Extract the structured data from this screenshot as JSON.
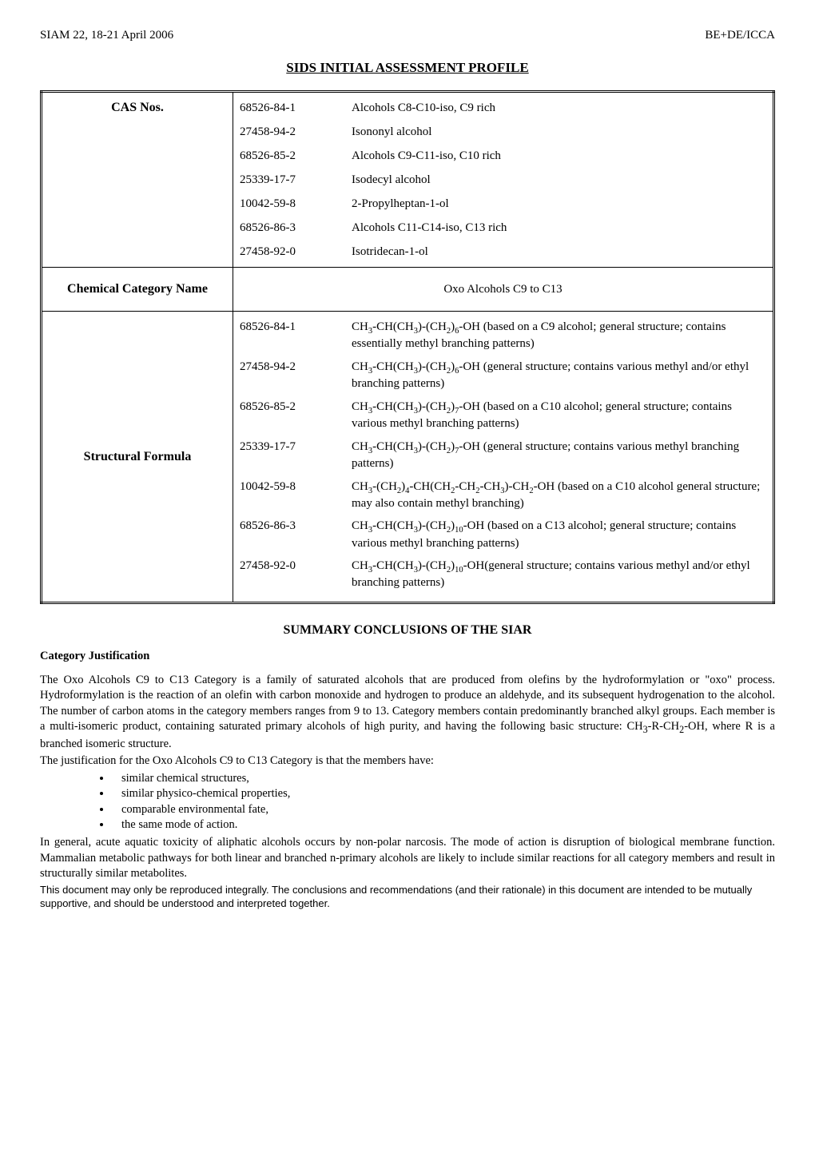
{
  "header": {
    "left": "SIAM 22, 18-21 April 2006",
    "right": "BE+DE/ICCA"
  },
  "title": "SIDS INITIAL ASSESSMENT PROFILE",
  "table": {
    "row1": {
      "label": "CAS Nos.",
      "items": [
        {
          "cas": "68526-84-1",
          "name": "Alcohols C8-C10-iso, C9 rich"
        },
        {
          "cas": "27458-94-2",
          "name": "Isononyl alcohol"
        },
        {
          "cas": "68526-85-2",
          "name": "Alcohols C9-C11-iso, C10 rich"
        },
        {
          "cas": "25339-17-7",
          "name": "Isodecyl alcohol"
        },
        {
          "cas": "10042-59-8",
          "name": "2-Propylheptan-1-ol"
        },
        {
          "cas": "68526-86-3",
          "name": "Alcohols C11-C14-iso, C13 rich"
        },
        {
          "cas": "27458-92-0",
          "name": "Isotridecan-1-ol"
        }
      ]
    },
    "row2": {
      "label": "Chemical Category Name",
      "value": "Oxo Alcohols C9 to C13"
    },
    "row3": {
      "label": "Structural Formula",
      "items": [
        {
          "cas": "68526-84-1",
          "formula_html": "CH<sub>3</sub>-CH(CH<sub>3</sub>)-(CH<sub>2</sub>)<sub>6</sub>-OH (based on a C9 alcohol; general structure; contains essentially methyl branching patterns)"
        },
        {
          "cas": "27458-94-2",
          "formula_html": "CH<sub>3</sub>-CH(CH<sub>3</sub>)-(CH<sub>2</sub>)<sub>6</sub>-OH (general structure; contains various methyl and/or ethyl branching patterns)"
        },
        {
          "cas": "68526-85-2",
          "formula_html": "CH<sub>3</sub>-CH(CH<sub>3</sub>)-(CH<sub>2</sub>)<sub>7</sub>-OH (based on a C10 alcohol; general structure; contains various methyl branching patterns)"
        },
        {
          "cas": "25339-17-7",
          "formula_html": "CH<sub>3</sub>-CH(CH<sub>3</sub>)-(CH<sub>2</sub>)<sub>7</sub>-OH (general structure; contains various methyl branching patterns)"
        },
        {
          "cas": "10042-59-8",
          "formula_html": "CH<sub>3</sub>-(CH<sub>2</sub>)<sub>4</sub>-CH(CH<sub>2</sub>-CH<sub>2</sub>-CH<sub>3</sub>)-CH<sub>2</sub>-OH (based on a C10 alcohol general structure; may also contain methyl branching)"
        },
        {
          "cas": "68526-86-3",
          "formula_html": "CH<sub>3</sub>-CH(CH<sub>3</sub>)-(CH<sub>2</sub>)<sub>10</sub>-OH (based on a C13 alcohol; general structure; contains various methyl branching patterns)"
        },
        {
          "cas": "27458-92-0",
          "formula_html": "CH<sub>3</sub>-CH(CH<sub>3</sub>)-(CH<sub>2</sub>)<sub>10</sub>-OH(general structure; contains various methyl and/or ethyl branching patterns)"
        }
      ]
    }
  },
  "summary": {
    "title": "SUMMARY CONCLUSIONS OF THE SIAR",
    "subheading": "Category Justification",
    "para1_html": "The Oxo Alcohols C9 to C13 Category is a family of saturated alcohols that are produced from olefins by the hydroformylation or \"oxo\" process. Hydroformylation is the reaction of an olefin with carbon monoxide and hydrogen to produce an aldehyde, and its subsequent hydrogenation to the alcohol. The number of carbon atoms in the category members ranges from 9 to 13. Category members contain predominantly branched alkyl groups. Each member is a multi-isomeric product, containing saturated primary alcohols of high purity, and having the following basic structure: CH<sub>3</sub>-R-CH<sub>2</sub>-OH, where R is a branched isomeric structure.",
    "para2": "The justification for the Oxo Alcohols C9 to C13 Category is that the members have:",
    "bullets": [
      "similar chemical structures,",
      "similar physico-chemical properties,",
      "comparable environmental fate,",
      "the same mode of action."
    ],
    "para3": "In general, acute aquatic toxicity of aliphatic alcohols occurs by non-polar narcosis. The mode of action is disruption of biological membrane function. Mammalian metabolic pathways for both linear and branched n-primary alcohols are likely to include similar reactions for all category members and result in structurally similar metabolites."
  },
  "footnote": "This document may only be reproduced integrally. The conclusions and recommendations (and their rationale) in this document are intended to be mutually supportive, and should be understood and interpreted together."
}
